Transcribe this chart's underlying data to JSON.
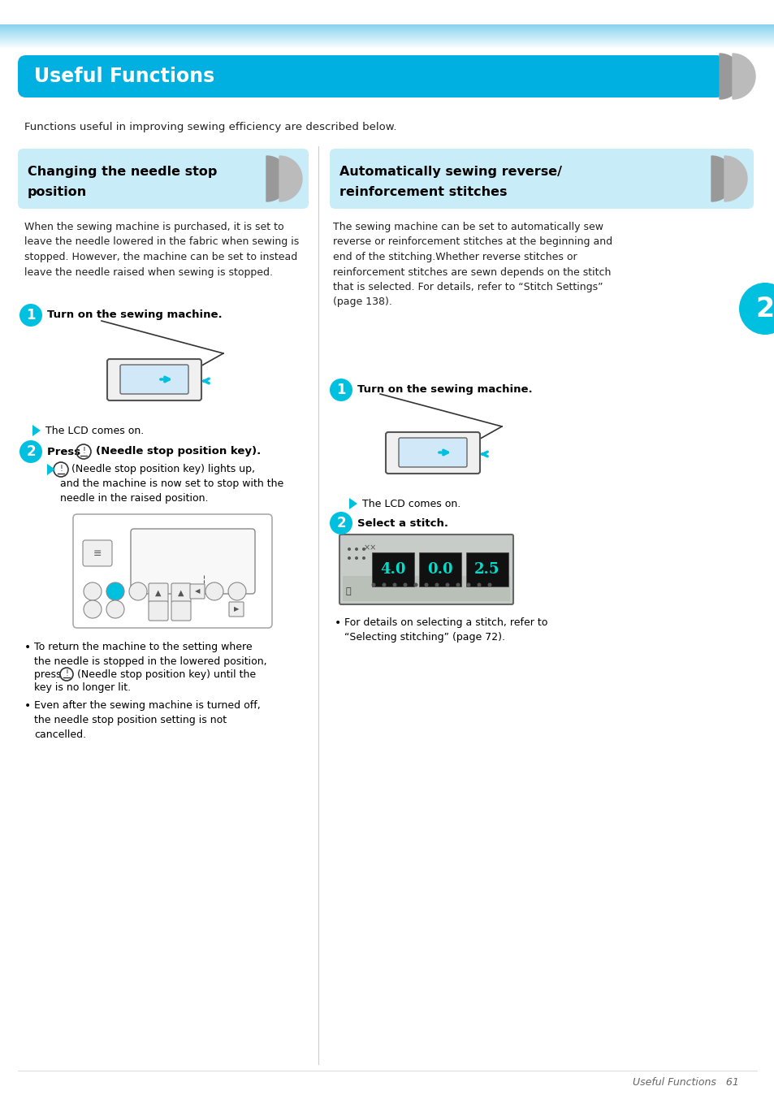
{
  "page_bg": "#ffffff",
  "top_stripe_color1": "#87d4f0",
  "top_stripe_color2": "#cceeff",
  "header_bg": "#00b0e0",
  "header_text": "Useful Functions",
  "header_text_color": "#ffffff",
  "section1_bg": "#c8ecf8",
  "section1_title_line1": "Changing the needle stop",
  "section1_title_line2": "position",
  "section2_bg": "#c8ecf8",
  "section2_title_line1": "Automatically sewing reverse/",
  "section2_title_line2": "reinforcement stitches",
  "body_text_color": "#222222",
  "accent_color": "#00c0e0",
  "step_circle_color": "#00c0e0",
  "step_text_color": "#ffffff",
  "divider_color": "#cccccc",
  "tab_color": "#00c0e0",
  "tab_text_color": "#ffffff",
  "footer_text_color": "#666666",
  "page_number": "61",
  "footer_label": "Useful Functions",
  "intro_text": "Functions useful in improving sewing efficiency are described below.",
  "col1_body": "When the sewing machine is purchased, it is set to\nleave the needle lowered in the fabric when sewing is\nstopped. However, the machine can be set to instead\nleave the needle raised when sewing is stopped.",
  "col1_step1_title": "Turn on the sewing machine.",
  "col1_step1_result": "The LCD comes on.",
  "col1_step2_title_a": "Press ",
  "col1_step2_title_b": " (Needle stop position key).",
  "col1_step2_result_a": " (Needle stop position key) lights up,",
  "col1_step2_result_b": "and the machine is now set to stop with the",
  "col1_step2_result_c": "needle in the raised position.",
  "col1_bullet1a": "To return the machine to the setting where",
  "col1_bullet1b": "the needle is stopped in the lowered position,",
  "col1_bullet1c": "press ",
  "col1_bullet1d": " (Needle stop position key) until the",
  "col1_bullet1e": "key is no longer lit.",
  "col1_bullet2": "Even after the sewing machine is turned off,\nthe needle stop position setting is not\ncancelled.",
  "col2_body": "The sewing machine can be set to automatically sew\nreverse or reinforcement stitches at the beginning and\nend of the stitching.Whether reverse stitches or\nreinforcement stitches are sewn depends on the stitch\nthat is selected. For details, refer to “Stitch Settings”\n(page 138).",
  "col2_step1_title": "Turn on the sewing machine.",
  "col2_step1_result": "The LCD comes on.",
  "col2_step2_title": "Select a stitch.",
  "col2_bullet1": "For details on selecting a stitch, refer to\n“Selecting stitching” (page 72).",
  "chevron_dark": "#999999",
  "chevron_light": "#bbbbbb"
}
